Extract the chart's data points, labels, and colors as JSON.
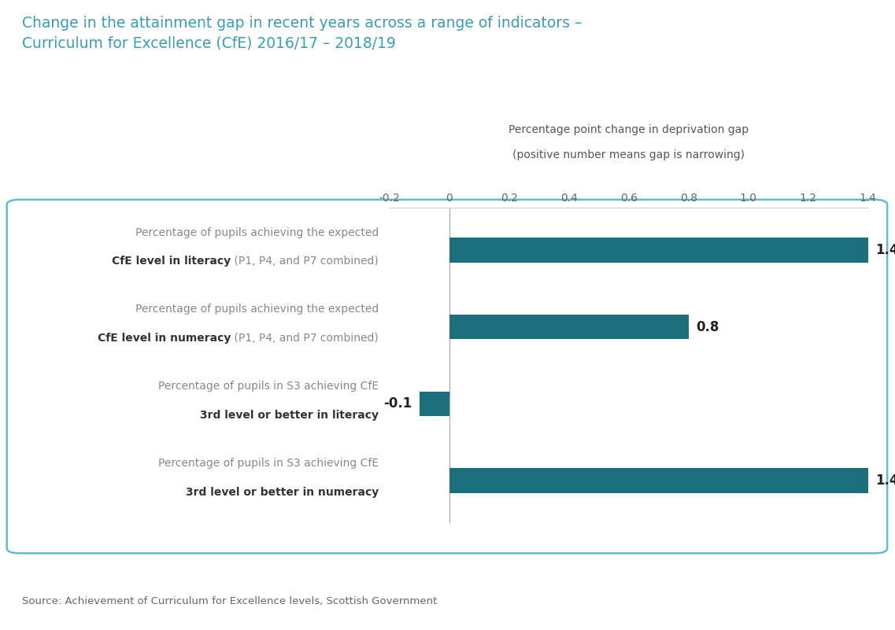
{
  "title_line1": "Change in the attainment gap in recent years across a range of indicators –",
  "title_line2": "Curriculum for Excellence (CfE) 2016/17 – 2018/19",
  "xlabel_line1": "Percentage point change in deprivation gap",
  "xlabel_line2": "(positive number means gap is narrowing)",
  "source": "Source: Achievement of Curriculum for Excellence levels, Scottish Government",
  "categories": [
    {
      "line1": "Percentage of pupils achieving the expected",
      "bold": "CfE level in literacy",
      "normal_suffix": " (P1, P4, and P7 combined)"
    },
    {
      "line1": "Percentage of pupils achieving the expected",
      "bold": "CfE level in numeracy",
      "normal_suffix": " (P1, P4, and P7 combined)"
    },
    {
      "line1": "Percentage of pupils in S3 achieving CfE",
      "bold": "3rd level or better in literacy",
      "normal_suffix": ""
    },
    {
      "line1": "Percentage of pupils in S3 achieving CfE",
      "bold": "3rd level or better in numeracy",
      "normal_suffix": ""
    }
  ],
  "values": [
    1.4,
    0.8,
    -0.1,
    1.4
  ],
  "value_labels": [
    "1.4",
    "0.8",
    "-0.1",
    "1.4"
  ],
  "bar_color": "#1a6f7a",
  "title_color": "#3a9db5",
  "label_color_normal": "#888888",
  "label_color_bold": "#333333",
  "value_label_color": "#222222",
  "xlim": [
    -0.2,
    1.4
  ],
  "xticks": [
    -0.2,
    0.0,
    0.2,
    0.4,
    0.6,
    0.8,
    1.0,
    1.2,
    1.4
  ],
  "xtick_labels": [
    "-0.2",
    "0",
    "0.2",
    "0.4",
    "0.6",
    "0.8",
    "1.0",
    "1.2",
    "1.4"
  ],
  "bar_height": 0.32,
  "box_color": "#5bbfcc",
  "background_color": "#ffffff",
  "title_fontsize": 13.5,
  "label_fontsize": 10,
  "value_fontsize": 12,
  "xtick_fontsize": 10,
  "source_fontsize": 9.5
}
